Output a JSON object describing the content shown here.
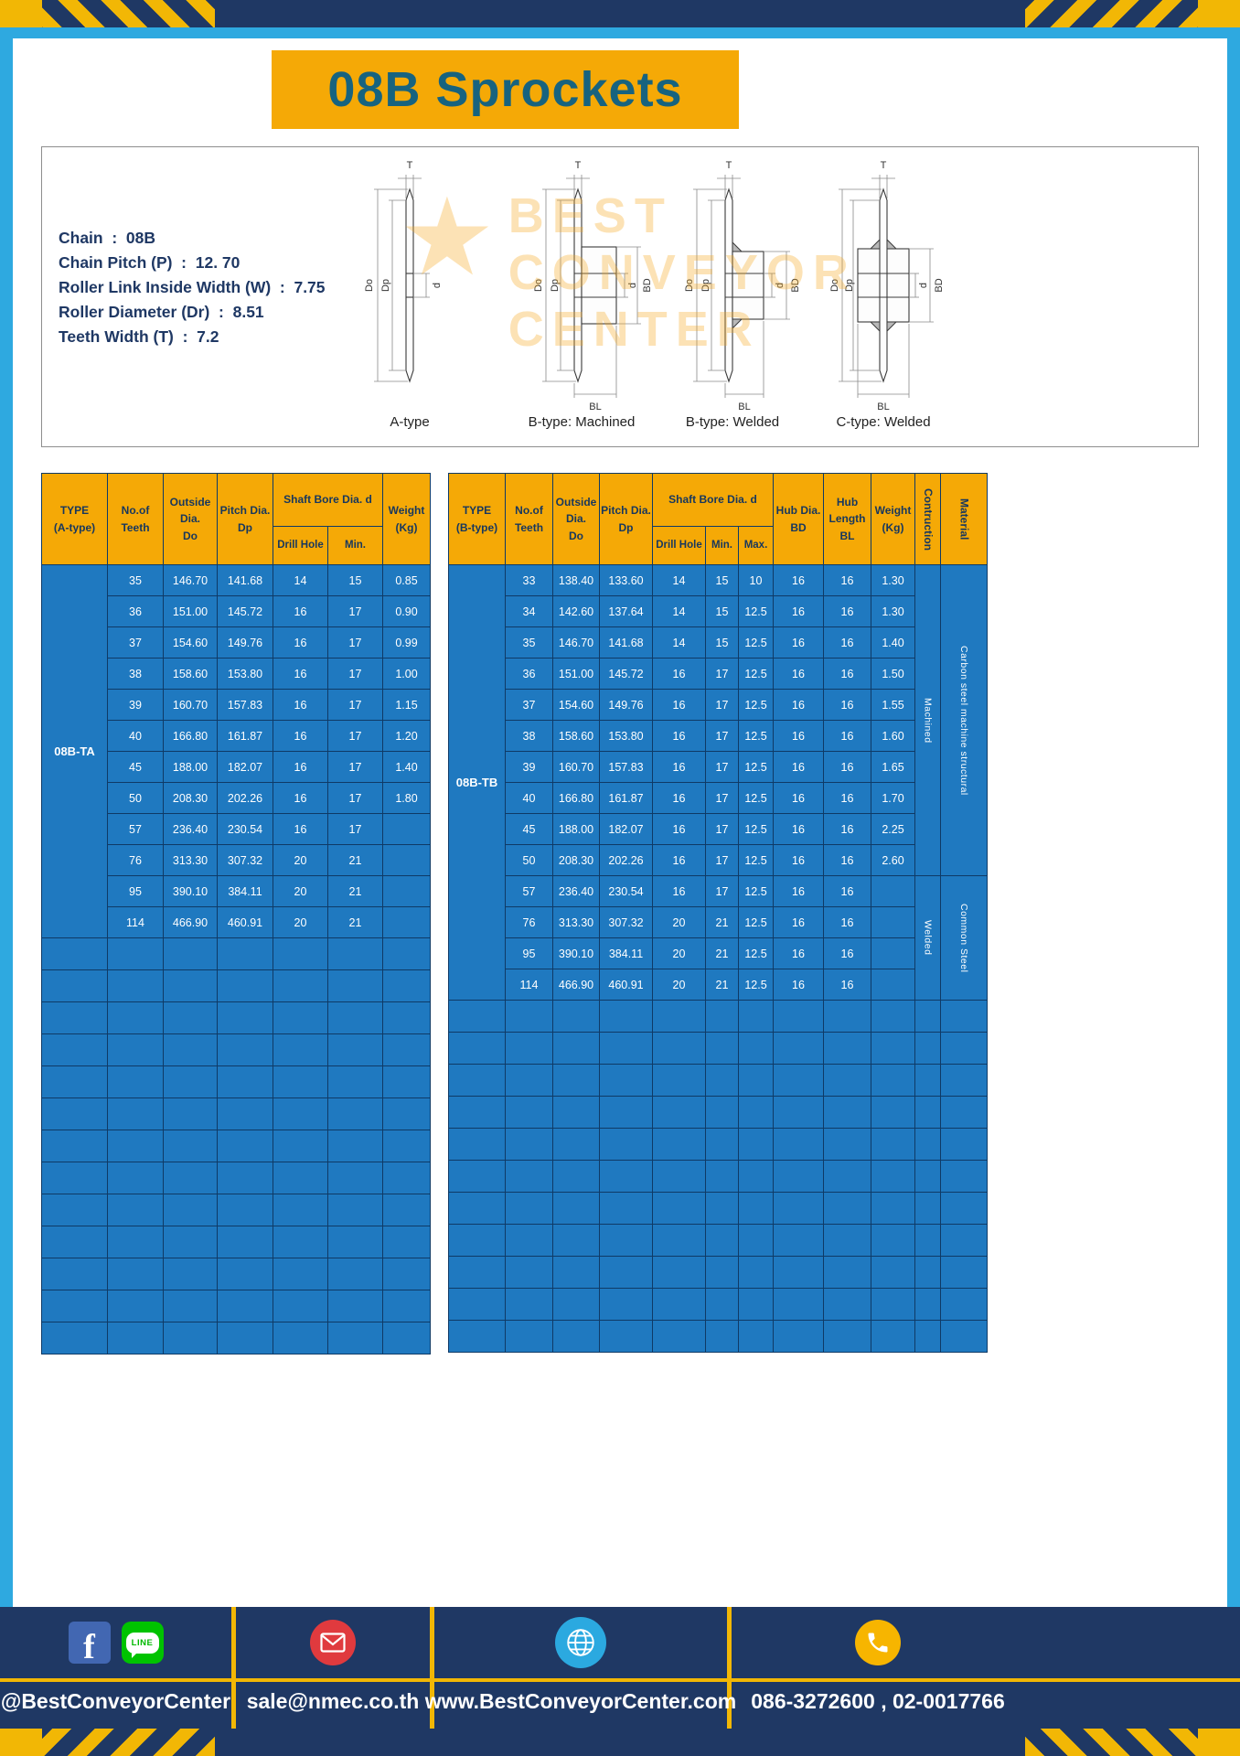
{
  "title": "08B Sprockets",
  "colors": {
    "banner_yellow": "#F5A906",
    "navy": "#1F3864",
    "table_blue": "#1F79C0",
    "table_border": "#0F3A66",
    "frame_blue": "#2EA9E0",
    "title_text": "#17637F"
  },
  "specs": [
    "Chain  :  08B",
    "Chain Pitch (P)  :  12. 70",
    "Roller Link Inside Width (W)  :  7.75",
    "Roller Diameter (Dr)  :  8.51",
    "Teeth Width (T)  :  7.2"
  ],
  "watermark": {
    "star": "★",
    "lines": [
      "BEST",
      "CONVEYOR",
      "CENTER"
    ]
  },
  "drawings": [
    {
      "caption": "A-type",
      "labels": {
        "t": "T",
        "do": "Do",
        "dp": "Dp",
        "d": "d"
      }
    },
    {
      "caption": "B-type: Machined",
      "labels": {
        "t": "T",
        "do": "Do",
        "dp": "Dp",
        "d": "d",
        "bd": "BD",
        "bl": "BL"
      }
    },
    {
      "caption": "B-type: Welded",
      "labels": {
        "t": "T",
        "do": "Do",
        "dp": "Dp",
        "d": "d",
        "bd": "BD",
        "bl": "BL"
      }
    },
    {
      "caption": "C-type: Welded",
      "labels": {
        "t": "T",
        "do": "Do",
        "dp": "Dp",
        "d": "d",
        "bd": "BD",
        "bl": "BL"
      }
    }
  ],
  "tables": {
    "left": {
      "type_label": "08B-TA",
      "header": {
        "type": "TYPE\n(A-type)",
        "teeth": "No.of\nTeeth",
        "outside": "Outside\nDia.\nDo",
        "pitch": "Pitch Dia.\nDp",
        "shaft_bore": "Shaft Bore Dia. d",
        "drill": "Drill Hole",
        "min": "Min.",
        "weight": "Weight\n(Kg)"
      },
      "rows": [
        [
          "35",
          "146.70",
          "141.68",
          "14",
          "15",
          "0.85"
        ],
        [
          "36",
          "151.00",
          "145.72",
          "16",
          "17",
          "0.90"
        ],
        [
          "37",
          "154.60",
          "149.76",
          "16",
          "17",
          "0.99"
        ],
        [
          "38",
          "158.60",
          "153.80",
          "16",
          "17",
          "1.00"
        ],
        [
          "39",
          "160.70",
          "157.83",
          "16",
          "17",
          "1.15"
        ],
        [
          "40",
          "166.80",
          "161.87",
          "16",
          "17",
          "1.20"
        ],
        [
          "45",
          "188.00",
          "182.07",
          "16",
          "17",
          "1.40"
        ],
        [
          "50",
          "208.30",
          "202.26",
          "16",
          "17",
          "1.80"
        ],
        [
          "57",
          "236.40",
          "230.54",
          "16",
          "17",
          ""
        ],
        [
          "76",
          "313.30",
          "307.32",
          "20",
          "21",
          ""
        ],
        [
          "95",
          "390.10",
          "384.11",
          "20",
          "21",
          ""
        ],
        [
          "114",
          "466.90",
          "460.91",
          "20",
          "21",
          ""
        ]
      ],
      "empty_rows": 13
    },
    "right": {
      "type_label": "08B-TB",
      "header": {
        "type": "TYPE\n(B-type)",
        "teeth": "No.of\nTeeth",
        "outside": "Outside\nDia.\nDo",
        "pitch": "Pitch Dia.\nDp",
        "shaft_bore": "Shaft Bore Dia. d",
        "drill": "Drill Hole",
        "min": "Min.",
        "max": "Max.",
        "hub_dia": "Hub Dia.\nBD",
        "hub_len": "Hub\nLength\nBL",
        "weight": "Weight\n(Kg)",
        "construction": "Contruction",
        "material": "Material"
      },
      "rows": [
        [
          "33",
          "138.40",
          "133.60",
          "14",
          "15",
          "10",
          "16",
          "16",
          "1.30"
        ],
        [
          "34",
          "142.60",
          "137.64",
          "14",
          "15",
          "12.5",
          "16",
          "16",
          "1.30"
        ],
        [
          "35",
          "146.70",
          "141.68",
          "14",
          "15",
          "12.5",
          "16",
          "16",
          "1.40"
        ],
        [
          "36",
          "151.00",
          "145.72",
          "16",
          "17",
          "12.5",
          "16",
          "16",
          "1.50"
        ],
        [
          "37",
          "154.60",
          "149.76",
          "16",
          "17",
          "12.5",
          "16",
          "16",
          "1.55"
        ],
        [
          "38",
          "158.60",
          "153.80",
          "16",
          "17",
          "12.5",
          "16",
          "16",
          "1.60"
        ],
        [
          "39",
          "160.70",
          "157.83",
          "16",
          "17",
          "12.5",
          "16",
          "16",
          "1.65"
        ],
        [
          "40",
          "166.80",
          "161.87",
          "16",
          "17",
          "12.5",
          "16",
          "16",
          "1.70"
        ],
        [
          "45",
          "188.00",
          "182.07",
          "16",
          "17",
          "12.5",
          "16",
          "16",
          "2.25"
        ],
        [
          "50",
          "208.30",
          "202.26",
          "16",
          "17",
          "12.5",
          "16",
          "16",
          "2.60"
        ],
        [
          "57",
          "236.40",
          "230.54",
          "16",
          "17",
          "12.5",
          "16",
          "16",
          ""
        ],
        [
          "76",
          "313.30",
          "307.32",
          "20",
          "21",
          "12.5",
          "16",
          "16",
          ""
        ],
        [
          "95",
          "390.10",
          "384.11",
          "20",
          "21",
          "12.5",
          "16",
          "16",
          ""
        ],
        [
          "114",
          "466.90",
          "460.91",
          "20",
          "21",
          "12.5",
          "16",
          "16",
          ""
        ]
      ],
      "construction_groups": [
        {
          "label": "Machined",
          "span": 10
        },
        {
          "label": "Welded",
          "span": 4
        }
      ],
      "material_groups": [
        {
          "label": "Carbon steel  machine structural",
          "span": 10
        },
        {
          "label": "Common  Steel",
          "span": 4
        }
      ],
      "empty_rows": 11
    }
  },
  "footer": {
    "facebook_f": "f",
    "line_badge": "LINE",
    "sections": [
      {
        "label": "@BestConveyorCenter"
      },
      {
        "label": "sale@nmec.co.th"
      },
      {
        "label": "www.BestConveyorCenter.com"
      },
      {
        "label": "086-3272600 , 02-0017766"
      }
    ]
  }
}
